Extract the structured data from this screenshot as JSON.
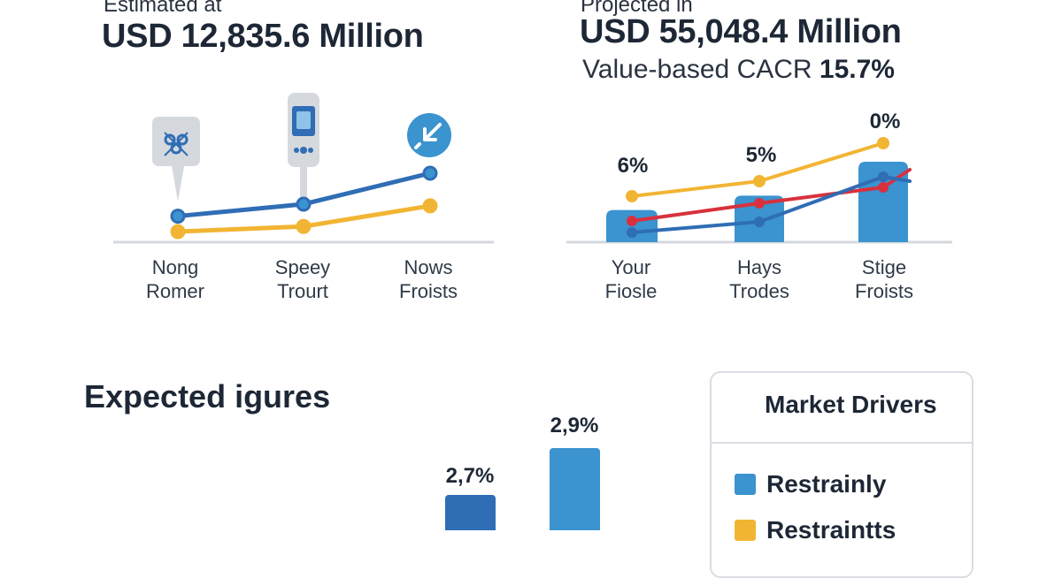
{
  "colors": {
    "blue": "#2f6db5",
    "light_blue": "#3b93cf",
    "yellow": "#f2b533",
    "red": "#d8313d",
    "axis": "#d4d8de",
    "icon_grey": "#d5d9de"
  },
  "left_panel": {
    "estimated_label": "Estimated at",
    "estimated_value": "USD 12,835.6 Million"
  },
  "right_panel": {
    "projected_label": "Projected in",
    "projected_value": "USD 55,048.4 Million",
    "cagr_label": "Value-based CACR",
    "cagr_value": "15.7%"
  },
  "bottom": {
    "heading": "Expected igures"
  },
  "legend": {
    "title": "Market Drivers",
    "items": [
      {
        "label": "Restrainly",
        "color": "#3b93cf"
      },
      {
        "label": "Restraintts",
        "color": "#f2b533"
      }
    ]
  },
  "icons": [
    "molecule-icon",
    "glucose-meter-icon",
    "shrink-arrows-icon"
  ],
  "chart_data": [
    {
      "type": "line",
      "title": "",
      "categories": [
        "Nong Romer",
        "Speey Trourt",
        "Nows Froists"
      ],
      "category_lines": [
        [
          "Nong",
          "Romer"
        ],
        [
          "Speey",
          "Trourt"
        ],
        [
          "Nows",
          "Froists"
        ]
      ],
      "series": [
        {
          "name": "blue",
          "color": "#2f6db5",
          "values": [
            1.0,
            1.7,
            3.5
          ]
        },
        {
          "name": "yellow",
          "color": "#f2b533",
          "values": [
            0.1,
            0.4,
            1.6
          ]
        }
      ],
      "ylim": [
        0,
        5
      ]
    },
    {
      "type": "bar",
      "title": "",
      "categories": [
        "Your Fiosle",
        "Hays Trodes",
        "Stige Froists"
      ],
      "category_lines": [
        [
          "Your",
          "Fiosle"
        ],
        [
          "Hays",
          "Trodes"
        ],
        [
          "Stige",
          "Froists"
        ]
      ],
      "bar_labels": [
        "6%",
        "5%",
        "0%"
      ],
      "values": [
        1.8,
        2.6,
        4.5
      ],
      "series": [
        {
          "name": "yellow",
          "color": "#f2b533",
          "values": [
            2.5,
            3.3,
            5.5
          ]
        },
        {
          "name": "red",
          "color": "#d8313d",
          "values": [
            1.0,
            2.0,
            3.7
          ]
        },
        {
          "name": "blue",
          "color": "#2f6db5",
          "values": [
            0.3,
            1.0,
            3.4
          ]
        }
      ],
      "ylim": [
        0,
        5.5
      ]
    },
    {
      "type": "bar",
      "title": "Expected igures",
      "categories": [
        "",
        ""
      ],
      "bar_labels": [
        "2,7%",
        "2,9%"
      ],
      "values": [
        2.7,
        2.9
      ],
      "colors": [
        "#2f6db5",
        "#3b93cf"
      ]
    }
  ]
}
